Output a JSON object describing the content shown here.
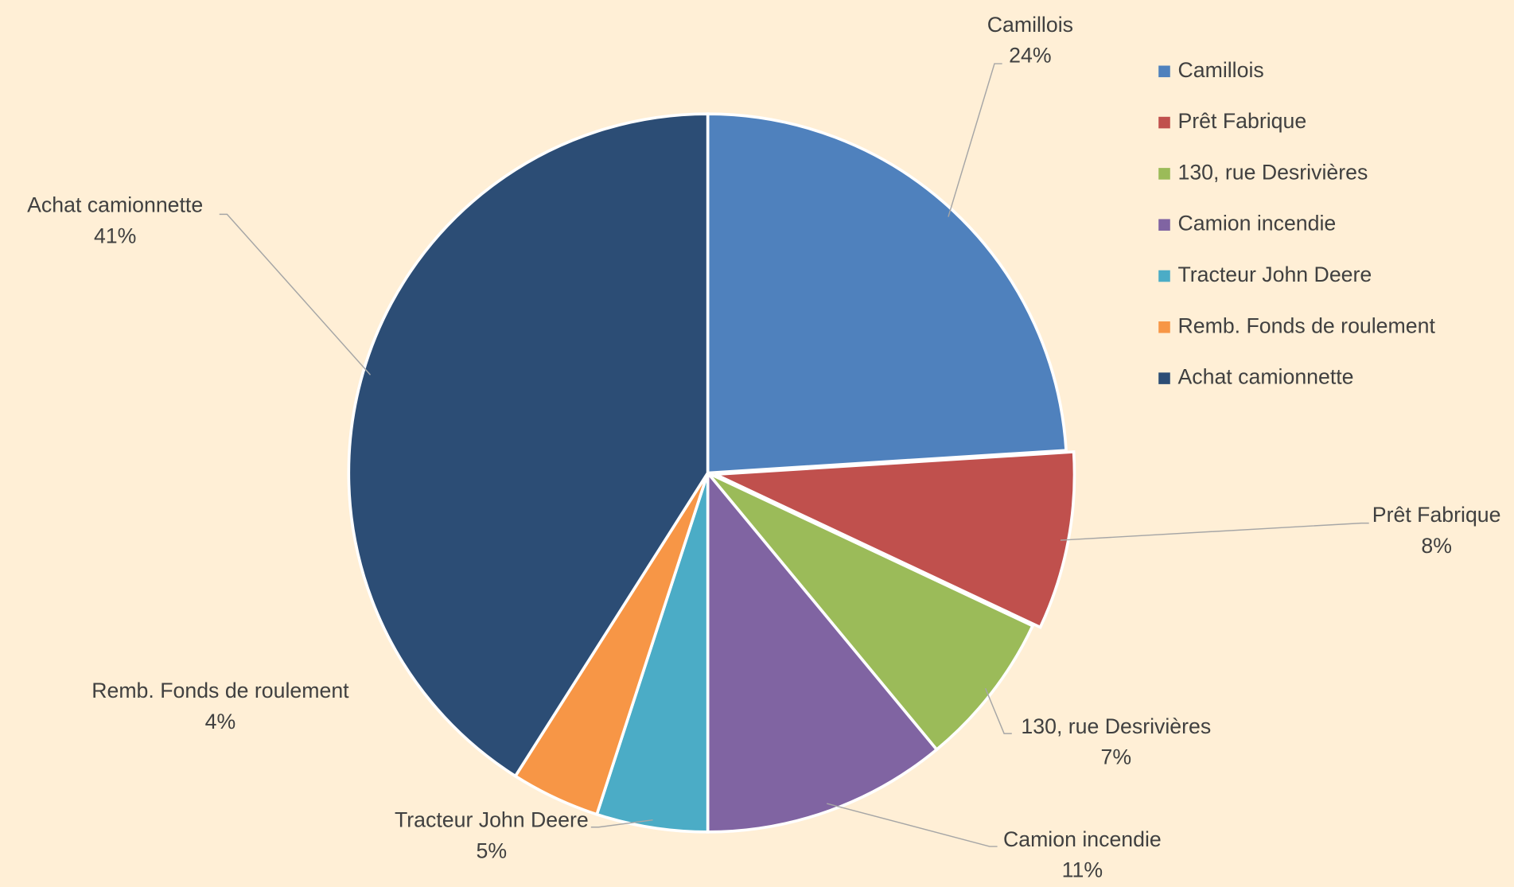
{
  "chart_data": {
    "type": "pie",
    "categories": [
      "Camillois",
      "Prêt Fabrique",
      "130, rue Desrivières",
      "Camion incendie",
      "Tracteur John Deere",
      "Remb. Fonds de roulement",
      "Achat camionnette"
    ],
    "values": [
      24,
      8,
      7,
      11,
      5,
      4,
      41
    ],
    "value_labels": [
      "24%",
      "8%",
      "7%",
      "11%",
      "5%",
      "4%",
      "41%"
    ],
    "colors": [
      "#4f81bd",
      "#c0504d",
      "#9bbb59",
      "#8064a2",
      "#4bacc6",
      "#f79646",
      "#2c4d75"
    ],
    "legend": "right"
  }
}
